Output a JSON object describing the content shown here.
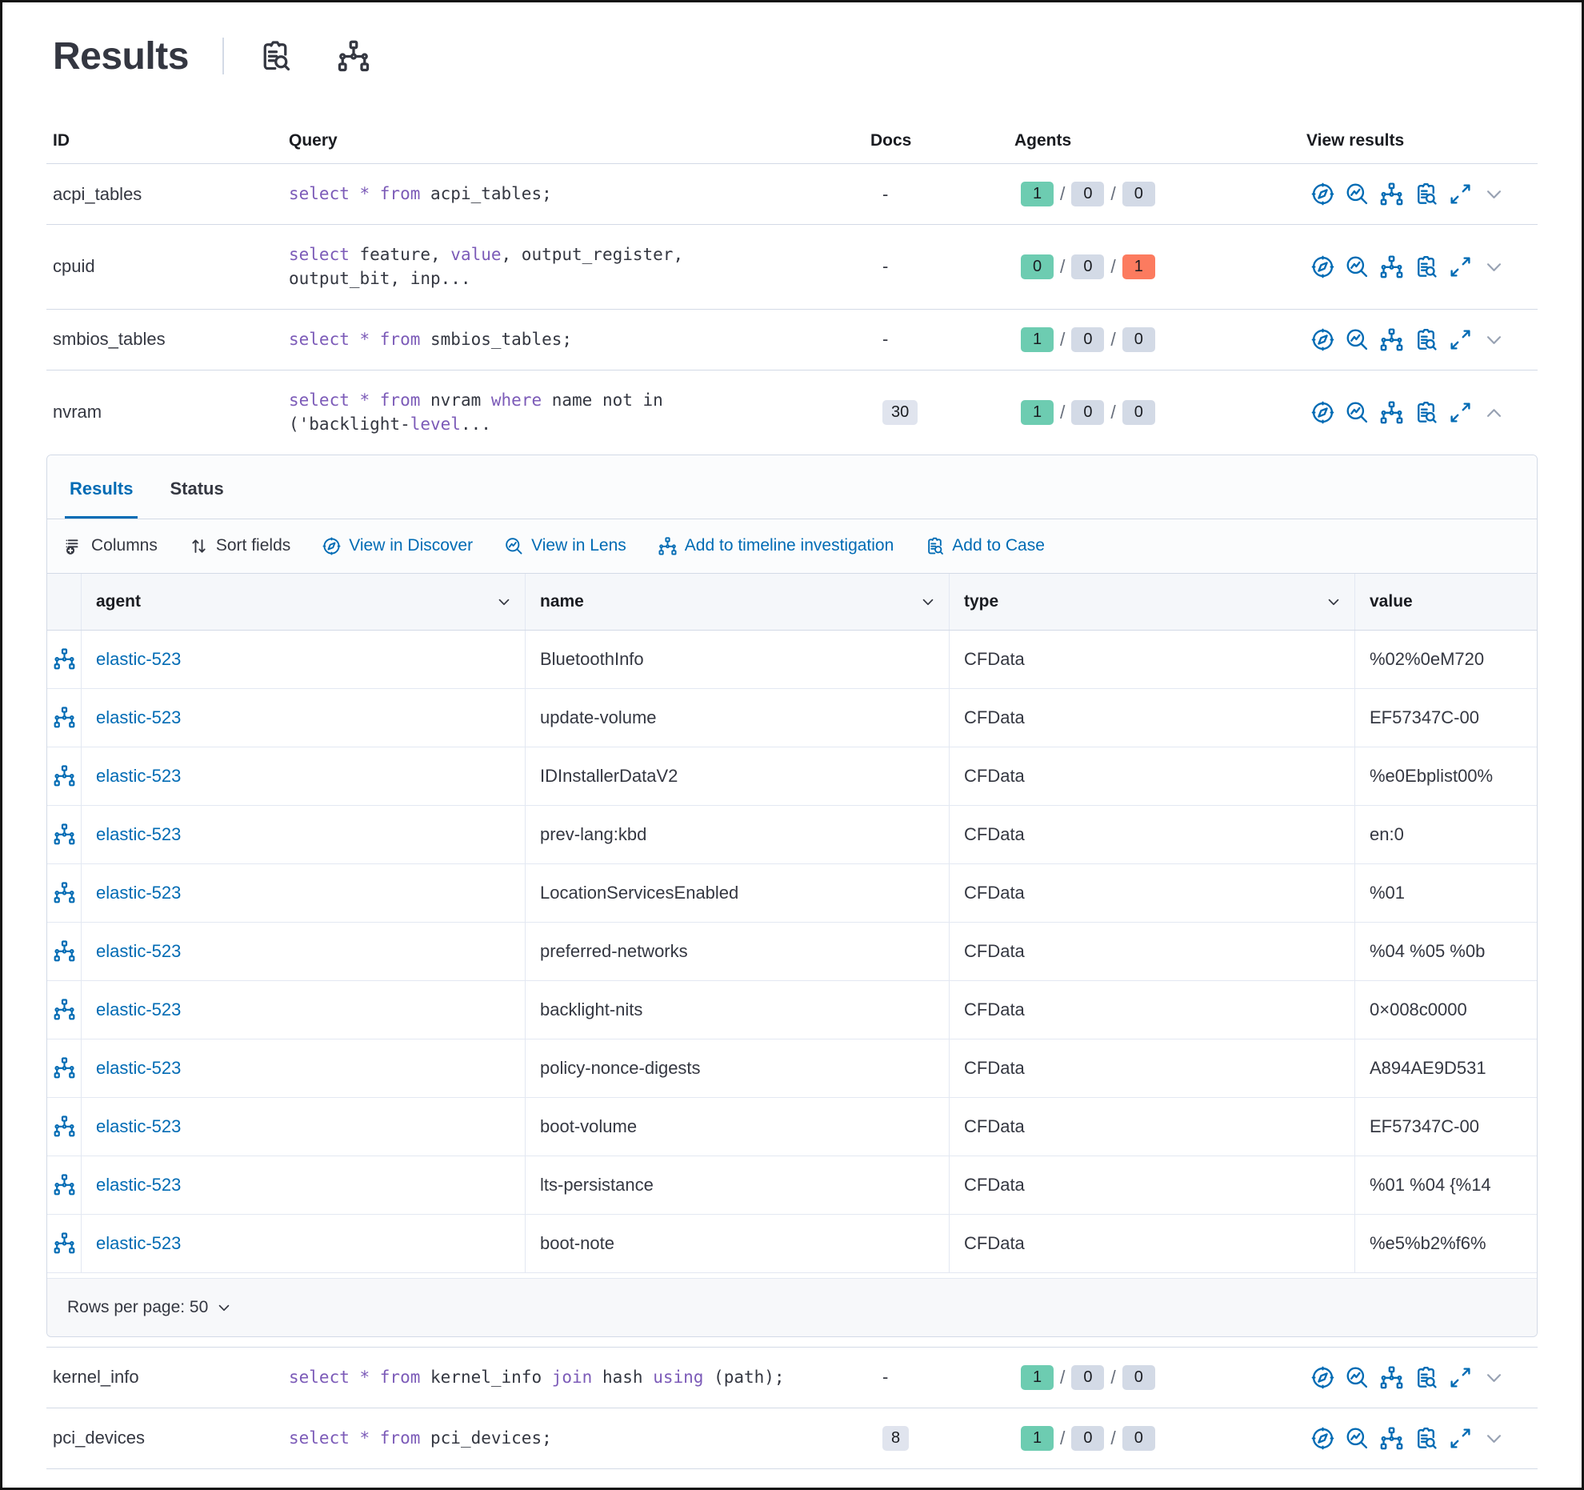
{
  "header": {
    "title": "Results",
    "icons": [
      "live-query-icon",
      "pack-icon"
    ]
  },
  "colors": {
    "primary": "#006bb4",
    "keyword": "#7c5bb8",
    "badge_success": "#6dccb1",
    "badge_default": "#d3dae6",
    "badge_danger": "#fc7b5f"
  },
  "table": {
    "columns": [
      "ID",
      "Query",
      "Docs",
      "Agents",
      "View results"
    ],
    "view_results_icons": [
      "discover-icon",
      "lens-icon",
      "timeline-icon",
      "cases-icon",
      "expand-icon"
    ],
    "rows": [
      {
        "id": "acpi_tables",
        "query": [
          {
            "t": "select * from",
            "k": true
          },
          {
            "t": " acpi_tables;",
            "k": false
          }
        ],
        "docs": "-",
        "docs_badge": false,
        "agents": [
          {
            "value": "1",
            "color": "success"
          },
          {
            "value": "0",
            "color": "default"
          },
          {
            "value": "0",
            "color": "default"
          }
        ],
        "expanded": false
      },
      {
        "id": "cpuid",
        "query": [
          {
            "t": "select",
            "k": true
          },
          {
            "t": " feature, ",
            "k": false
          },
          {
            "t": "value",
            "k": true
          },
          {
            "t": ", output_register,\noutput_bit, inp...",
            "k": false
          }
        ],
        "docs": "-",
        "docs_badge": false,
        "agents": [
          {
            "value": "0",
            "color": "success"
          },
          {
            "value": "0",
            "color": "default"
          },
          {
            "value": "1",
            "color": "danger"
          }
        ],
        "expanded": false
      },
      {
        "id": "smbios_tables",
        "query": [
          {
            "t": "select * from",
            "k": true
          },
          {
            "t": " smbios_tables;",
            "k": false
          }
        ],
        "docs": "-",
        "docs_badge": false,
        "agents": [
          {
            "value": "1",
            "color": "success"
          },
          {
            "value": "0",
            "color": "default"
          },
          {
            "value": "0",
            "color": "default"
          }
        ],
        "expanded": false
      },
      {
        "id": "nvram",
        "query": [
          {
            "t": "select * from",
            "k": true
          },
          {
            "t": " nvram ",
            "k": false
          },
          {
            "t": "where",
            "k": true
          },
          {
            "t": " name not in\n('backlight-",
            "k": false
          },
          {
            "t": "level",
            "k": true
          },
          {
            "t": "...",
            "k": false
          }
        ],
        "docs": "30",
        "docs_badge": true,
        "agents": [
          {
            "value": "1",
            "color": "success"
          },
          {
            "value": "0",
            "color": "default"
          },
          {
            "value": "0",
            "color": "default"
          }
        ],
        "expanded": true
      },
      {
        "id": "kernel_info",
        "query": [
          {
            "t": "select * from",
            "k": true
          },
          {
            "t": " kernel_info ",
            "k": false
          },
          {
            "t": "join",
            "k": true
          },
          {
            "t": " hash ",
            "k": false
          },
          {
            "t": "using",
            "k": true
          },
          {
            "t": " (path);",
            "k": false
          }
        ],
        "docs": "-",
        "docs_badge": false,
        "agents": [
          {
            "value": "1",
            "color": "success"
          },
          {
            "value": "0",
            "color": "default"
          },
          {
            "value": "0",
            "color": "default"
          }
        ],
        "expanded": false
      },
      {
        "id": "pci_devices",
        "query": [
          {
            "t": "select * from",
            "k": true
          },
          {
            "t": " pci_devices;",
            "k": false
          }
        ],
        "docs": "8",
        "docs_badge": true,
        "agents": [
          {
            "value": "1",
            "color": "success"
          },
          {
            "value": "0",
            "color": "default"
          },
          {
            "value": "0",
            "color": "default"
          }
        ],
        "expanded": false
      }
    ]
  },
  "expanded_panel": {
    "tabs": [
      {
        "label": "Results",
        "active": true
      },
      {
        "label": "Status",
        "active": false
      }
    ],
    "toolbar": [
      {
        "label": "Columns",
        "icon": "columns-icon",
        "style": "text"
      },
      {
        "label": "Sort fields",
        "icon": "sort-icon",
        "style": "text"
      },
      {
        "label": "View in Discover",
        "icon": "discover-icon",
        "style": "primary"
      },
      {
        "label": "View in Lens",
        "icon": "lens-icon",
        "style": "primary"
      },
      {
        "label": "Add to timeline investigation",
        "icon": "timeline-icon",
        "style": "primary"
      },
      {
        "label": "Add to Case",
        "icon": "cases-icon",
        "style": "primary"
      }
    ],
    "grid": {
      "columns": [
        {
          "label": "agent",
          "sortable": true
        },
        {
          "label": "name",
          "sortable": true
        },
        {
          "label": "type",
          "sortable": true
        },
        {
          "label": "value",
          "sortable": false
        }
      ],
      "rows": [
        {
          "agent": "elastic-523",
          "name": "BluetoothInfo",
          "type": "CFData",
          "value": "%02%0eM720"
        },
        {
          "agent": "elastic-523",
          "name": "update-volume",
          "type": "CFData",
          "value": "EF57347C-00"
        },
        {
          "agent": "elastic-523",
          "name": "IDInstallerDataV2",
          "type": "CFData",
          "value": "%e0Ebplist00%"
        },
        {
          "agent": "elastic-523",
          "name": "prev-lang:kbd",
          "type": "CFData",
          "value": "en:0"
        },
        {
          "agent": "elastic-523",
          "name": "LocationServicesEnabled",
          "type": "CFData",
          "value": "%01"
        },
        {
          "agent": "elastic-523",
          "name": "preferred-networks",
          "type": "CFData",
          "value": "%04 %05 %0b"
        },
        {
          "agent": "elastic-523",
          "name": "backlight-nits",
          "type": "CFData",
          "value": "0×008c0000"
        },
        {
          "agent": "elastic-523",
          "name": "policy-nonce-digests",
          "type": "CFData",
          "value": "A894AE9D531"
        },
        {
          "agent": "elastic-523",
          "name": "boot-volume",
          "type": "CFData",
          "value": "EF57347C-00"
        },
        {
          "agent": "elastic-523",
          "name": "lts-persistance",
          "type": "CFData",
          "value": "%01 %04 {%14"
        },
        {
          "agent": "elastic-523",
          "name": "boot-note",
          "type": "CFData",
          "value": "%e5%b2%f6%"
        }
      ]
    },
    "footer": {
      "label": "Rows per page: 50"
    }
  }
}
